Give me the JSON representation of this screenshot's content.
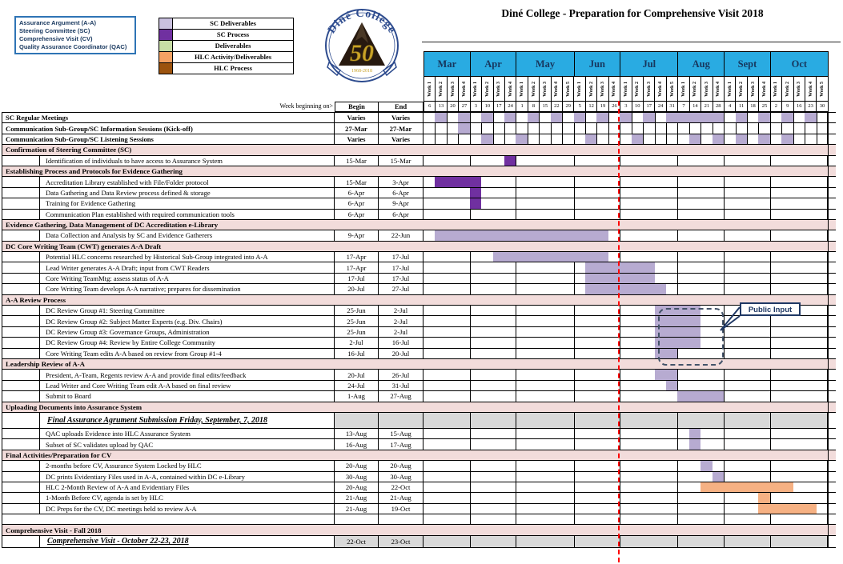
{
  "title": "Diné College - Preparation for Comprehensive Visit 2018",
  "acronym_legend": {
    "lines": [
      "Assurance Argument (A-A)",
      "Steering Committee (SC)",
      "Comprehensive Visit (CV)",
      "Quality Assurance Coordinator (QAC)"
    ]
  },
  "color_legend": {
    "items": [
      {
        "label": "SC Deliverables",
        "color": "#C9C0DE"
      },
      {
        "label": "SC Process",
        "color": "#7030A0"
      },
      {
        "label": "Deliverables",
        "color": "#C7DDA5"
      },
      {
        "label": "HLC Activity/Deliverables",
        "color": "#F4A263"
      },
      {
        "label": "HLC Process",
        "color": "#9C530E"
      }
    ]
  },
  "logo": {
    "arc_text": "Diné College",
    "center_text": "50",
    "years": "1968-2018"
  },
  "columns_header": {
    "week_beginning": "Week beginning on>",
    "begin": "Begin",
    "end": "End"
  },
  "annotations": {
    "public_input": "Public Input"
  },
  "chart_data": {
    "type": "table",
    "title": "Diné College - Preparation for Comprehensive Visit 2018",
    "week_label_prefix": "Week",
    "today_marker": "red dashed vertical line at Jun/Jul boundary",
    "months": [
      {
        "name": "Mar",
        "weeks": 4,
        "dates": [
          6,
          13,
          20,
          27
        ]
      },
      {
        "name": "Apr",
        "weeks": 4,
        "dates": [
          3,
          10,
          17,
          24
        ]
      },
      {
        "name": "May",
        "weeks": 5,
        "dates": [
          1,
          8,
          15,
          22,
          29
        ]
      },
      {
        "name": "Jun",
        "weeks": 4,
        "dates": [
          5,
          12,
          19,
          26
        ]
      },
      {
        "name": "Jul",
        "weeks": 5,
        "dates": [
          3,
          10,
          17,
          24,
          31
        ]
      },
      {
        "name": "Aug",
        "weeks": 4,
        "dates": [
          7,
          14,
          21,
          28
        ]
      },
      {
        "name": "Sept",
        "weeks": 4,
        "dates": [
          4,
          11,
          18,
          25
        ]
      },
      {
        "name": "Oct",
        "weeks": 5,
        "dates": [
          2,
          9,
          16,
          23,
          30
        ]
      }
    ],
    "bar_colors": {
      "sc_deliverable": "#B7ABD1",
      "sc_process": "#7030A0",
      "deliverable": "#C7DDA5",
      "hlc_activity": "#F6B183",
      "hlc_process": "#9C530E"
    },
    "rows": [
      {
        "kind": "task",
        "bold": true,
        "label": "SC Regular Meetings",
        "begin": "Varies",
        "end": "Varies",
        "weeklines": true,
        "bars": [
          [
            2,
            2
          ],
          [
            4,
            4
          ],
          [
            6,
            6
          ],
          [
            8,
            8
          ],
          [
            10,
            10
          ],
          [
            12,
            12
          ],
          [
            14,
            14
          ],
          [
            16,
            16
          ],
          [
            18,
            18
          ],
          [
            20,
            20
          ],
          [
            22,
            26
          ],
          [
            28,
            28
          ],
          [
            30,
            30
          ],
          [
            32,
            32
          ],
          [
            34,
            34
          ]
        ]
      },
      {
        "kind": "task",
        "bold": true,
        "label": "Communication Sub-Group/SC Information Sessions (Kick-off)",
        "begin": "27-Mar",
        "end": "27-Mar",
        "weeklines": true,
        "bars": [
          [
            4,
            4
          ]
        ]
      },
      {
        "kind": "task",
        "bold": true,
        "label": "Communication Sub-Group/SC Listening Sessions",
        "begin": "Varies",
        "end": "Varies",
        "weeklines": true,
        "bars": [
          [
            6,
            6
          ],
          [
            9,
            9
          ],
          [
            15,
            15
          ],
          [
            19,
            19
          ],
          [
            24,
            24
          ],
          [
            26,
            26
          ],
          [
            28,
            28
          ],
          [
            30,
            30
          ],
          [
            32,
            32
          ]
        ]
      },
      {
        "kind": "section",
        "label": "Confirmation of Steering Committee (SC)"
      },
      {
        "kind": "task",
        "label": "Identification of individuals to have access to Assurance System",
        "begin": "15-Mar",
        "end": "15-Mar",
        "bars": [
          [
            8,
            8,
            "sc_process"
          ]
        ]
      },
      {
        "kind": "section",
        "label": "Establishing Process and Protocols for Evidence Gathering"
      },
      {
        "kind": "task",
        "label": "Accreditation Library established with File/Folder protocol",
        "begin": "15-Mar",
        "end": "3-Apr",
        "bars": [
          [
            2,
            5,
            "sc_process"
          ]
        ]
      },
      {
        "kind": "task",
        "label": "Data Gathering and Data Review process defined & storage",
        "begin": "6-Apr",
        "end": "6-Apr",
        "bars": [
          [
            5,
            5,
            "sc_process"
          ]
        ]
      },
      {
        "kind": "task",
        "label": "Training for Evidence Gathering",
        "begin": "6-Apr",
        "end": "9-Apr",
        "bars": [
          [
            5,
            5,
            "sc_process"
          ]
        ]
      },
      {
        "kind": "task",
        "label": "Communication Plan established with required communication tools",
        "begin": "6-Apr",
        "end": "6-Apr",
        "bars": []
      },
      {
        "kind": "section",
        "label": "Evidence Gathering, Data Management of DC Accreditation e-Library"
      },
      {
        "kind": "task",
        "label": "Data Collection and Analysis by SC and Evidence Gatherers",
        "begin": "9-Apr",
        "end": "22-Jun",
        "bars": [
          [
            2,
            16
          ]
        ]
      },
      {
        "kind": "section",
        "label": "DC Core Writing Team (CWT) generates A-A Draft"
      },
      {
        "kind": "task",
        "label": "Potential HLC concerns researched by Historical Sub-Group integrated into A-A",
        "begin": "17-Apr",
        "end": "17-Jul",
        "bars": [
          [
            7,
            16
          ]
        ]
      },
      {
        "kind": "task",
        "label": "Lead Writer generates A-A Draft; input from CWT Readers",
        "begin": "17-Apr",
        "end": "17-Jul",
        "bars": [
          [
            15,
            20
          ]
        ]
      },
      {
        "kind": "task",
        "label": "Core Writing TeamMtg: assess status of A-A",
        "begin": "17-Jul",
        "end": "17-Jul",
        "bars": [
          [
            15,
            20
          ]
        ]
      },
      {
        "kind": "task",
        "label": "Core Writing Team develops A-A narrative; prepares for dissemination",
        "begin": "20-Jul",
        "end": "27-Jul",
        "bars": [
          [
            15,
            21
          ]
        ]
      },
      {
        "kind": "section",
        "label": "A-A Review Process"
      },
      {
        "kind": "task",
        "label": "DC Review Group #1: Steering Committee",
        "begin": "25-Jun",
        "end": "2-Jul",
        "bars": [
          [
            21,
            24
          ]
        ]
      },
      {
        "kind": "task",
        "label": "DC Review Group #2: Subject Matter Experts (e.g. Div. Chairs)",
        "begin": "25-Jun",
        "end": "2-Jul",
        "bars": [
          [
            21,
            24
          ]
        ]
      },
      {
        "kind": "task",
        "label": "DC Review Group #3: Governance Groups, Administration",
        "begin": "25-Jun",
        "end": "2-Jul",
        "bars": [
          [
            21,
            24
          ]
        ]
      },
      {
        "kind": "task",
        "label": "DC Review Group #4: Review by Entire College Community",
        "begin": "2-Jul",
        "end": "16-Jul",
        "bars": [
          [
            21,
            24
          ]
        ]
      },
      {
        "kind": "task",
        "label": "Core Writing Team edits A-A based on review from Group #1-4",
        "begin": "16-Jul",
        "end": "20-Jul",
        "bars": [
          [
            21,
            22
          ]
        ]
      },
      {
        "kind": "section",
        "label": "Leadership Review of A-A"
      },
      {
        "kind": "task",
        "label": "President, A-Team, Regents review A-A and provide final edits/feedback",
        "begin": "20-Jul",
        "end": "26-Jul",
        "bars": [
          [
            21,
            22
          ]
        ]
      },
      {
        "kind": "task",
        "label": "Lead Writer and Core Writing Team edit A-A based on final review",
        "begin": "24-Jul",
        "end": "31-Jul",
        "bars": [
          [
            22,
            22
          ]
        ]
      },
      {
        "kind": "task",
        "label": "Submit to Board",
        "begin": "1-Aug",
        "end": "27-Aug",
        "bars": [
          [
            23,
            26
          ]
        ]
      },
      {
        "kind": "section",
        "label": "Uploading Documents into Assurance System"
      },
      {
        "kind": "milestone",
        "label": "Final Assurance Agrument Submission Friday, September, 7, 2018",
        "begin": "",
        "end": "",
        "gray": true,
        "h": 20,
        "bars": []
      },
      {
        "kind": "task",
        "label": "QAC uploads Evidence into HLC Assurance System",
        "begin": "13-Aug",
        "end": "15-Aug",
        "bars": [
          [
            24,
            24
          ]
        ]
      },
      {
        "kind": "task",
        "label": "Subset of SC validates upload by QAC",
        "begin": "16-Aug",
        "end": "17-Aug",
        "bars": [
          [
            24,
            24
          ]
        ]
      },
      {
        "kind": "section",
        "label": "Final Activities/Preparation for CV"
      },
      {
        "kind": "task",
        "label": "2-months before CV, Assurance System Locked by HLC",
        "begin": "20-Aug",
        "end": "20-Aug",
        "bars": [
          [
            25,
            25
          ]
        ]
      },
      {
        "kind": "task",
        "label": "DC prints Evidentiary Files used in A-A, contained within DC e-Library",
        "begin": "30-Aug",
        "end": "30-Aug",
        "bars": [
          [
            26,
            26
          ]
        ]
      },
      {
        "kind": "task",
        "label": "HLC 2-Month Review of A-A and Evidentiary Files",
        "begin": "20-Aug",
        "end": "22-Oct",
        "bars": [
          [
            25,
            32,
            "hlc_activity"
          ]
        ]
      },
      {
        "kind": "task",
        "label": "1-Month Before CV, agenda is set by HLC",
        "begin": "21-Aug",
        "end": "21-Aug",
        "bars": [
          [
            30,
            30,
            "hlc_activity"
          ]
        ]
      },
      {
        "kind": "task",
        "label": "DC Preps for the CV, DC meetings held to review A-A",
        "begin": "21-Aug",
        "end": "19-Oct",
        "bars": [
          [
            30,
            34,
            "hlc_activity"
          ]
        ]
      },
      {
        "kind": "spacer",
        "label": "",
        "begin": "",
        "end": "",
        "bars": []
      },
      {
        "kind": "section",
        "label": "Comprehensive Visit - Fall 2018"
      },
      {
        "kind": "milestone",
        "label": "Comprehensive Visit - October 22-23, 2018",
        "begin": "22-Oct",
        "end": "23-Oct",
        "gray": true,
        "h": 15,
        "bars": []
      }
    ]
  }
}
